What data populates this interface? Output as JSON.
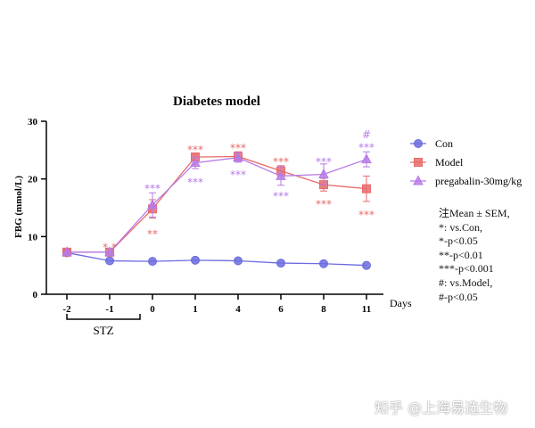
{
  "chart_data": {
    "type": "line",
    "title": "Diabetes model",
    "ylabel": "FBG (mmol/L)",
    "xlabel": "Days",
    "ylim": [
      0,
      30
    ],
    "yticks": [
      "0",
      "10",
      "20",
      "30"
    ],
    "categories": [
      "-2",
      "-1",
      "0",
      "1",
      "4",
      "6",
      "8",
      "11"
    ],
    "bracket_label": "STZ",
    "legend_position": "right",
    "series": [
      {
        "name": "Con",
        "color": "#6b6be0",
        "marker": "circle",
        "values": [
          7.2,
          5.8,
          5.7,
          5.9,
          5.8,
          5.4,
          5.3,
          5.0
        ],
        "errors": [
          0.4,
          0.2,
          0.2,
          0.2,
          0.2,
          0.2,
          0.2,
          0.2
        ]
      },
      {
        "name": "Model",
        "color": "#e86a6a",
        "marker": "square",
        "values": [
          7.3,
          7.3,
          14.8,
          23.8,
          23.9,
          21.4,
          19.0,
          18.3
        ],
        "errors": [
          0.3,
          0.3,
          1.6,
          0.6,
          0.8,
          0.9,
          1.1,
          2.2
        ]
      },
      {
        "name": "pregabalin-30mg/kg",
        "color": "#b77ae6",
        "marker": "triangle",
        "values": [
          7.3,
          7.3,
          15.5,
          22.8,
          23.7,
          20.5,
          20.8,
          23.4
        ],
        "errors": [
          0.3,
          0.3,
          2.1,
          1.0,
          0.8,
          1.6,
          1.8,
          1.3
        ]
      }
    ],
    "annotations": [
      {
        "text": "* *",
        "x_index": 1,
        "y": 8.3,
        "color": "#e86a6a"
      },
      {
        "text": "***",
        "x_index": 2,
        "y": 18.5,
        "color": "#b77ae6"
      },
      {
        "text": "**",
        "x_index": 2,
        "y": 10.6,
        "color": "#e86a6a"
      },
      {
        "text": "***",
        "x_index": 3,
        "y": 25.2,
        "color": "#e86a6a"
      },
      {
        "text": "***",
        "x_index": 3,
        "y": 19.6,
        "color": "#b77ae6"
      },
      {
        "text": "***",
        "x_index": 4,
        "y": 25.5,
        "color": "#e86a6a"
      },
      {
        "text": "***",
        "x_index": 4,
        "y": 20.9,
        "color": "#b77ae6"
      },
      {
        "text": "***",
        "x_index": 5,
        "y": 23.1,
        "color": "#e86a6a"
      },
      {
        "text": "***",
        "x_index": 5,
        "y": 17.2,
        "color": "#b77ae6"
      },
      {
        "text": "***",
        "x_index": 6,
        "y": 23.1,
        "color": "#b77ae6"
      },
      {
        "text": "***",
        "x_index": 6,
        "y": 15.8,
        "color": "#e86a6a"
      },
      {
        "text": "#",
        "x_index": 7,
        "y": 27.8,
        "color": "#b77ae6"
      },
      {
        "text": "***",
        "x_index": 7,
        "y": 25.6,
        "color": "#b77ae6"
      },
      {
        "text": "***",
        "x_index": 7,
        "y": 13.9,
        "color": "#e86a6a"
      }
    ]
  },
  "notes": [
    "注Mean ± SEM,",
    "*: vs.Con,",
    "*-p<0.05",
    "**-p<0.01",
    "***-p<0.001",
    "#: vs.Model,",
    "#-p<0.05"
  ],
  "watermark": "知乎 @上海易选生物"
}
